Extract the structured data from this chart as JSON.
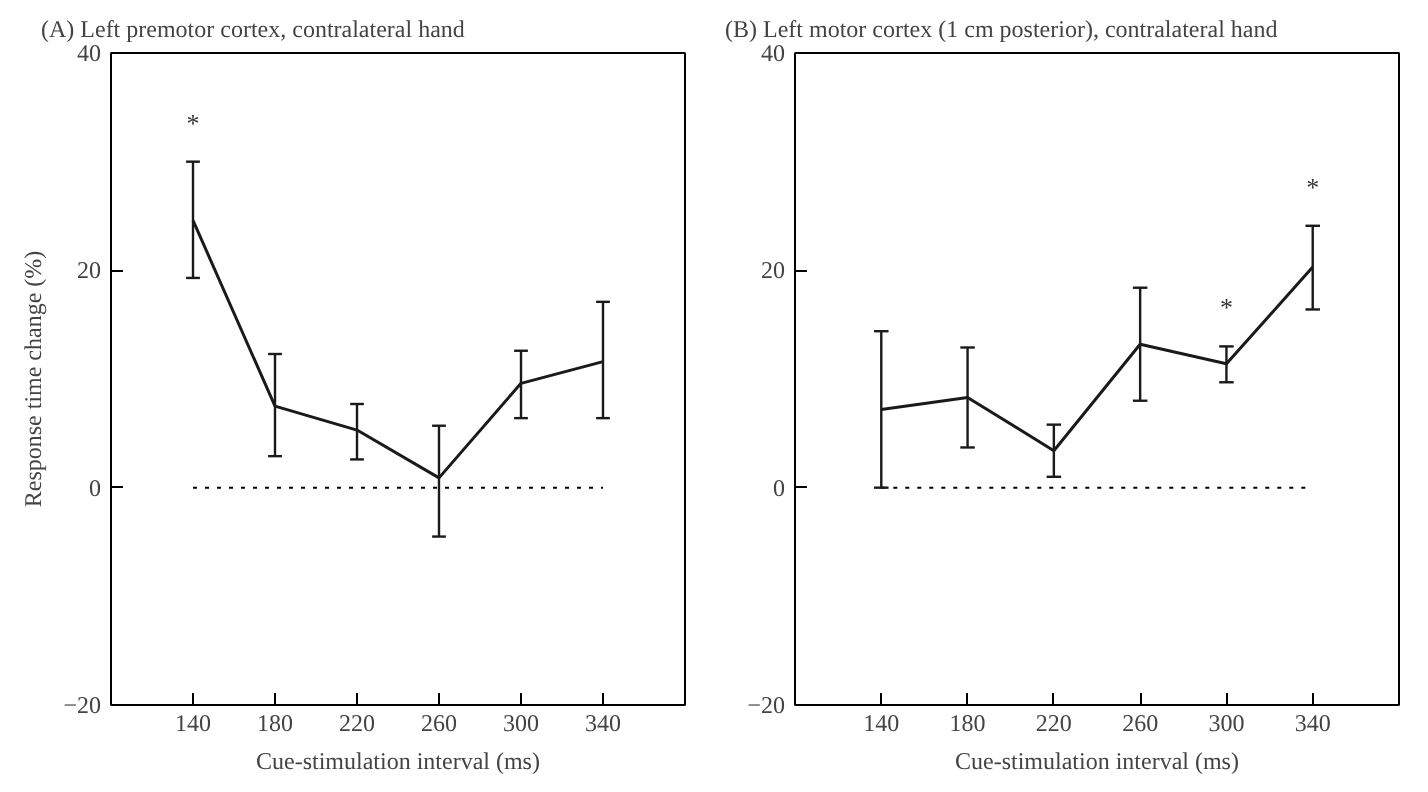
{
  "chart_data": [
    {
      "type": "line",
      "title": "(A) Left premotor cortex, contralateral hand",
      "xlabel": "Cue-stimulation interval (ms)",
      "ylabel": "Response time change (%)",
      "x": [
        140,
        180,
        220,
        260,
        300,
        340
      ],
      "series": [
        {
          "color": "#1a1a1a",
          "values": [
            24.6,
            7.5,
            5.3,
            0.9,
            9.6,
            11.6
          ],
          "errors": [
            [
              19.3,
              30.0
            ],
            [
              2.9,
              12.3
            ],
            [
              2.6,
              7.7
            ],
            [
              -4.5,
              5.7
            ],
            [
              6.4,
              12.6
            ],
            [
              6.4,
              17.1
            ]
          ]
        }
      ],
      "xlim": [
        100,
        380
      ],
      "xticks": [
        140,
        180,
        220,
        260,
        300,
        340
      ],
      "ylim": [
        -20,
        40
      ],
      "yticks": [
        -20,
        0,
        20,
        40
      ],
      "grid": false,
      "marker": "none",
      "line_style": "solid",
      "ref_lines": [
        {
          "axis": "y",
          "value": 0,
          "line_style": "dotted"
        }
      ],
      "annotations": [
        "*"
      ]
    },
    {
      "type": "line",
      "title": "(B) Left motor cortex (1 cm posterior), contralateral hand",
      "xlabel": "Cue-stimulation interval (ms)",
      "x": [
        140,
        180,
        220,
        260,
        300,
        340
      ],
      "series": [
        {
          "color": "#1a1a1a",
          "values": [
            7.2,
            8.3,
            3.4,
            13.2,
            11.4,
            20.3
          ],
          "errors": [
            [
              0.0,
              14.4
            ],
            [
              3.7,
              12.9
            ],
            [
              1.0,
              5.8
            ],
            [
              8.0,
              18.4
            ],
            [
              9.7,
              13.0
            ],
            [
              16.4,
              24.1
            ]
          ]
        }
      ],
      "xlim": [
        100,
        380
      ],
      "xticks": [
        140,
        180,
        220,
        260,
        300,
        340
      ],
      "ylim": [
        -20,
        40
      ],
      "yticks": [
        -20,
        0,
        20,
        40
      ],
      "grid": false,
      "marker": "none",
      "line_style": "solid",
      "ref_lines": [
        {
          "axis": "y",
          "value": 0,
          "line_style": "dotted"
        }
      ],
      "annotations": [
        "*",
        "*"
      ]
    }
  ]
}
